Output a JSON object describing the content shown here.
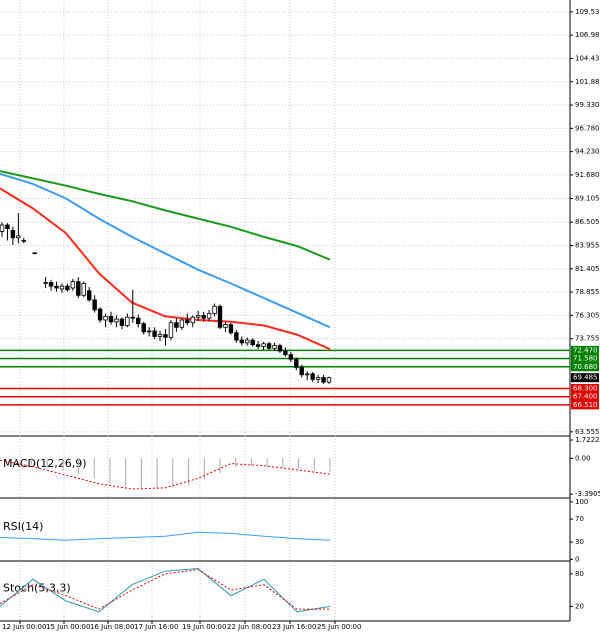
{
  "chart_data": [
    {
      "type": "candlestick",
      "grid": true,
      "ylim": [
        63.1,
        110.83
      ],
      "yticks": [
        {
          "value": 109.53,
          "label": "109.530"
        },
        {
          "value": 106.98,
          "label": "106.980"
        },
        {
          "value": 104.43,
          "label": "104.430"
        },
        {
          "value": 101.88,
          "label": "101.880"
        },
        {
          "value": 99.33,
          "label": "99.330"
        },
        {
          "value": 96.78,
          "label": "96.780"
        },
        {
          "value": 94.23,
          "label": "94.230"
        },
        {
          "value": 91.68,
          "label": "91.680"
        },
        89.105,
        86.505,
        83.955,
        81.405,
        78.855,
        76.305,
        73.755,
        63.555
      ],
      "candles": [
        {
          "open": 85.5,
          "high": 86.5,
          "low": 84.9,
          "close": 86.2
        },
        {
          "open": 86.2,
          "high": 86.4,
          "low": 84.5,
          "close": 85.8
        },
        {
          "open": 85.6,
          "high": 86.0,
          "low": 84.0,
          "close": 84.8
        },
        {
          "open": 84.8,
          "high": 87.5,
          "low": 84.2,
          "close": 85.0
        },
        {
          "open": 84.5,
          "high": 84.8,
          "low": 84.2,
          "close": 84.5
        },
        null,
        {
          "open": 83.1,
          "high": 83.2,
          "low": 83.0,
          "close": 83.15
        },
        null,
        {
          "open": 79.8,
          "high": 80.5,
          "low": 79.3,
          "close": 79.9
        },
        {
          "open": 79.9,
          "high": 80.2,
          "low": 79.0,
          "close": 79.5
        },
        {
          "open": 79.5,
          "high": 80.0,
          "low": 78.9,
          "close": 79.3
        },
        {
          "open": 79.2,
          "high": 79.8,
          "low": 78.8,
          "close": 79.5
        },
        {
          "open": 79.5,
          "high": 79.8,
          "low": 78.9,
          "close": 79.1
        },
        {
          "open": 79.3,
          "high": 80.3,
          "low": 79.0,
          "close": 80.0
        },
        {
          "open": 80.0,
          "high": 80.5,
          "low": 78.2,
          "close": 78.5
        },
        {
          "open": 78.5,
          "high": 80.0,
          "low": 78.3,
          "close": 79.8
        },
        {
          "open": 79.0,
          "high": 79.4,
          "low": 77.8,
          "close": 78.0
        },
        {
          "open": 78.0,
          "high": 78.5,
          "low": 76.6,
          "close": 76.9
        },
        {
          "open": 77.0,
          "high": 77.2,
          "low": 75.5,
          "close": 75.8
        },
        {
          "open": 75.8,
          "high": 76.5,
          "low": 75.0,
          "close": 76.2
        },
        {
          "open": 76.2,
          "high": 76.7,
          "low": 75.3,
          "close": 75.6
        },
        {
          "open": 75.6,
          "high": 76.3,
          "low": 75.0,
          "close": 75.9
        },
        {
          "open": 75.9,
          "high": 76.1,
          "low": 74.8,
          "close": 75.2
        },
        {
          "open": 75.2,
          "high": 76.5,
          "low": 75.0,
          "close": 76.1
        },
        {
          "open": 76.1,
          "high": 79.1,
          "low": 75.5,
          "close": 76.0
        },
        {
          "open": 76.0,
          "high": 76.4,
          "low": 75.0,
          "close": 75.4
        },
        {
          "open": 75.4,
          "high": 75.6,
          "low": 74.2,
          "close": 74.5
        },
        {
          "open": 74.5,
          "high": 75.0,
          "low": 74.0,
          "close": 74.6
        },
        {
          "open": 74.6,
          "high": 75.0,
          "low": 73.7,
          "close": 74.0
        },
        {
          "open": 74.0,
          "high": 74.6,
          "low": 73.5,
          "close": 74.2
        },
        {
          "open": 74.2,
          "high": 74.8,
          "low": 73.0,
          "close": 73.9
        },
        {
          "open": 73.9,
          "high": 75.8,
          "low": 73.6,
          "close": 75.5
        },
        {
          "open": 75.5,
          "high": 76.0,
          "low": 74.5,
          "close": 75.0
        },
        {
          "open": 75.0,
          "high": 75.9,
          "low": 74.7,
          "close": 75.8
        },
        {
          "open": 75.8,
          "high": 76.5,
          "low": 75.2,
          "close": 75.5
        },
        {
          "open": 75.5,
          "high": 76.3,
          "low": 75.0,
          "close": 76.1
        },
        {
          "open": 76.1,
          "high": 76.8,
          "low": 75.7,
          "close": 76.3
        },
        {
          "open": 76.3,
          "high": 76.7,
          "low": 75.6,
          "close": 76.0
        },
        {
          "open": 76.0,
          "high": 76.9,
          "low": 75.7,
          "close": 76.5
        },
        {
          "open": 76.5,
          "high": 77.6,
          "low": 76.2,
          "close": 77.3
        },
        {
          "open": 77.3,
          "high": 77.5,
          "low": 74.8,
          "close": 75.0
        },
        {
          "open": 75.0,
          "high": 75.6,
          "low": 74.5,
          "close": 75.3
        },
        {
          "open": 75.3,
          "high": 75.5,
          "low": 74.2,
          "close": 74.4
        },
        {
          "open": 74.4,
          "high": 74.7,
          "low": 73.3,
          "close": 73.6
        },
        {
          "open": 73.6,
          "high": 74.0,
          "low": 73.0,
          "close": 73.3
        },
        {
          "open": 73.3,
          "high": 73.9,
          "low": 73.0,
          "close": 73.6
        },
        {
          "open": 73.6,
          "high": 73.8,
          "low": 72.9,
          "close": 73.1
        },
        {
          "open": 73.1,
          "high": 73.5,
          "low": 72.6,
          "close": 72.9
        },
        {
          "open": 72.9,
          "high": 73.4,
          "low": 72.5,
          "close": 73.2
        },
        {
          "open": 73.2,
          "high": 73.4,
          "low": 72.5,
          "close": 72.7
        },
        {
          "open": 72.7,
          "high": 73.3,
          "low": 72.4,
          "close": 73.0
        },
        {
          "open": 73.0,
          "high": 73.2,
          "low": 72.2,
          "close": 72.4
        },
        {
          "open": 72.4,
          "high": 72.8,
          "low": 71.8,
          "close": 72.0
        },
        {
          "open": 72.0,
          "high": 72.3,
          "low": 71.2,
          "close": 71.5
        },
        {
          "open": 71.5,
          "high": 71.7,
          "low": 70.3,
          "close": 70.6
        },
        {
          "open": 70.6,
          "high": 70.9,
          "low": 69.5,
          "close": 69.8
        },
        {
          "open": 69.8,
          "high": 70.2,
          "low": 69.2,
          "close": 69.9
        },
        {
          "open": 69.9,
          "high": 70.1,
          "low": 69.0,
          "close": 69.3
        },
        {
          "open": 69.3,
          "high": 69.8,
          "low": 68.9,
          "close": 69.5
        },
        {
          "open": 69.5,
          "high": 69.8,
          "low": 68.8,
          "close": 69.0
        },
        {
          "open": 69.0,
          "high": 69.6,
          "low": 68.8,
          "close": 69.485
        }
      ],
      "series": [
        {
          "color": "#ff2a1a",
          "values": [
            90.2,
            88.0,
            85.3,
            80.9,
            77.7,
            76.2,
            75.8,
            75.6,
            75.2,
            74.2,
            72.6
          ]
        },
        {
          "color": "#3c9cf0",
          "values": [
            91.8,
            90.7,
            89.1,
            86.9,
            84.9,
            83.1,
            81.3,
            79.8,
            78.2,
            76.6,
            75.0
          ]
        },
        {
          "color": "#1a9a1a",
          "values": [
            92.1,
            91.3,
            90.5,
            89.6,
            88.8,
            87.8,
            86.9,
            86.0,
            84.9,
            83.9,
            82.4
          ]
        }
      ],
      "levels": [
        {
          "value": 72.47,
          "label": "72.470",
          "color": "#008000"
        },
        {
          "value": 71.58,
          "label": "71.580",
          "color": "#008000"
        },
        {
          "value": 70.68,
          "label": "70.680",
          "color": "#008000"
        },
        {
          "value": 69.485,
          "label": "69.485",
          "color": "#000000"
        },
        {
          "value": 68.3,
          "label": "68.300",
          "color": "#e00000"
        },
        {
          "value": 67.4,
          "label": "67.400",
          "color": "#e00000"
        },
        {
          "value": 66.51,
          "label": "66.510",
          "color": "#e00000"
        }
      ]
    },
    {
      "type": "macd",
      "title": "MACD(12,26,9)",
      "ylim": [
        -3.75,
        2.1
      ],
      "yticks": [
        1.7222,
        {
          "value": 0,
          "label": "0.00"
        },
        -3.3905
      ],
      "series": [
        {
          "style": "bar",
          "color": "#a8a8a8",
          "values": [
            -0.2,
            -0.4,
            -0.6,
            -0.9,
            -1.2,
            -1.5,
            -1.9,
            -2.3,
            -2.6,
            -2.8,
            -2.9,
            -2.8,
            -2.5,
            -2.0,
            -1.4,
            -0.9,
            -0.7,
            -0.8,
            -0.9,
            -1.0,
            -1.2,
            -1.3
          ]
        },
        {
          "style": "dash",
          "color": "#e00000",
          "values": [
            -0.2,
            -0.8,
            -1.6,
            -2.4,
            -2.9,
            -2.8,
            -1.9,
            -0.5,
            -0.7,
            -1.1,
            -1.5
          ]
        }
      ]
    },
    {
      "type": "line",
      "title": "RSI(14)",
      "ylim": [
        -3,
        105
      ],
      "yticks": [
        100,
        70,
        30,
        0
      ],
      "series": [
        {
          "color": "#3c9cf0",
          "values": [
            38,
            36,
            33,
            36,
            38,
            40,
            47,
            45,
            40,
            36,
            33
          ]
        }
      ]
    },
    {
      "type": "line",
      "title": "Stoch(5,3,3)",
      "ylim": [
        -7,
        102
      ],
      "yticks": [
        80,
        20
      ],
      "series": [
        {
          "color": "#2a9ab0",
          "values": [
            20,
            70,
            30,
            10,
            60,
            85,
            90,
            40,
            70,
            10,
            20
          ]
        },
        {
          "style": "dash",
          "color": "#e00000",
          "values": [
            25,
            60,
            40,
            15,
            50,
            80,
            88,
            50,
            60,
            15,
            15
          ]
        }
      ]
    }
  ],
  "time_axis": [
    "12 Jun 00:00",
    "15 Jun 00:00",
    "16 Jun 08:00",
    "17 Jun 16:00",
    "19 Jun 00:00",
    "22 Jun 08:00",
    "23 Jun 16:00",
    "25 Jun 00:00"
  ]
}
